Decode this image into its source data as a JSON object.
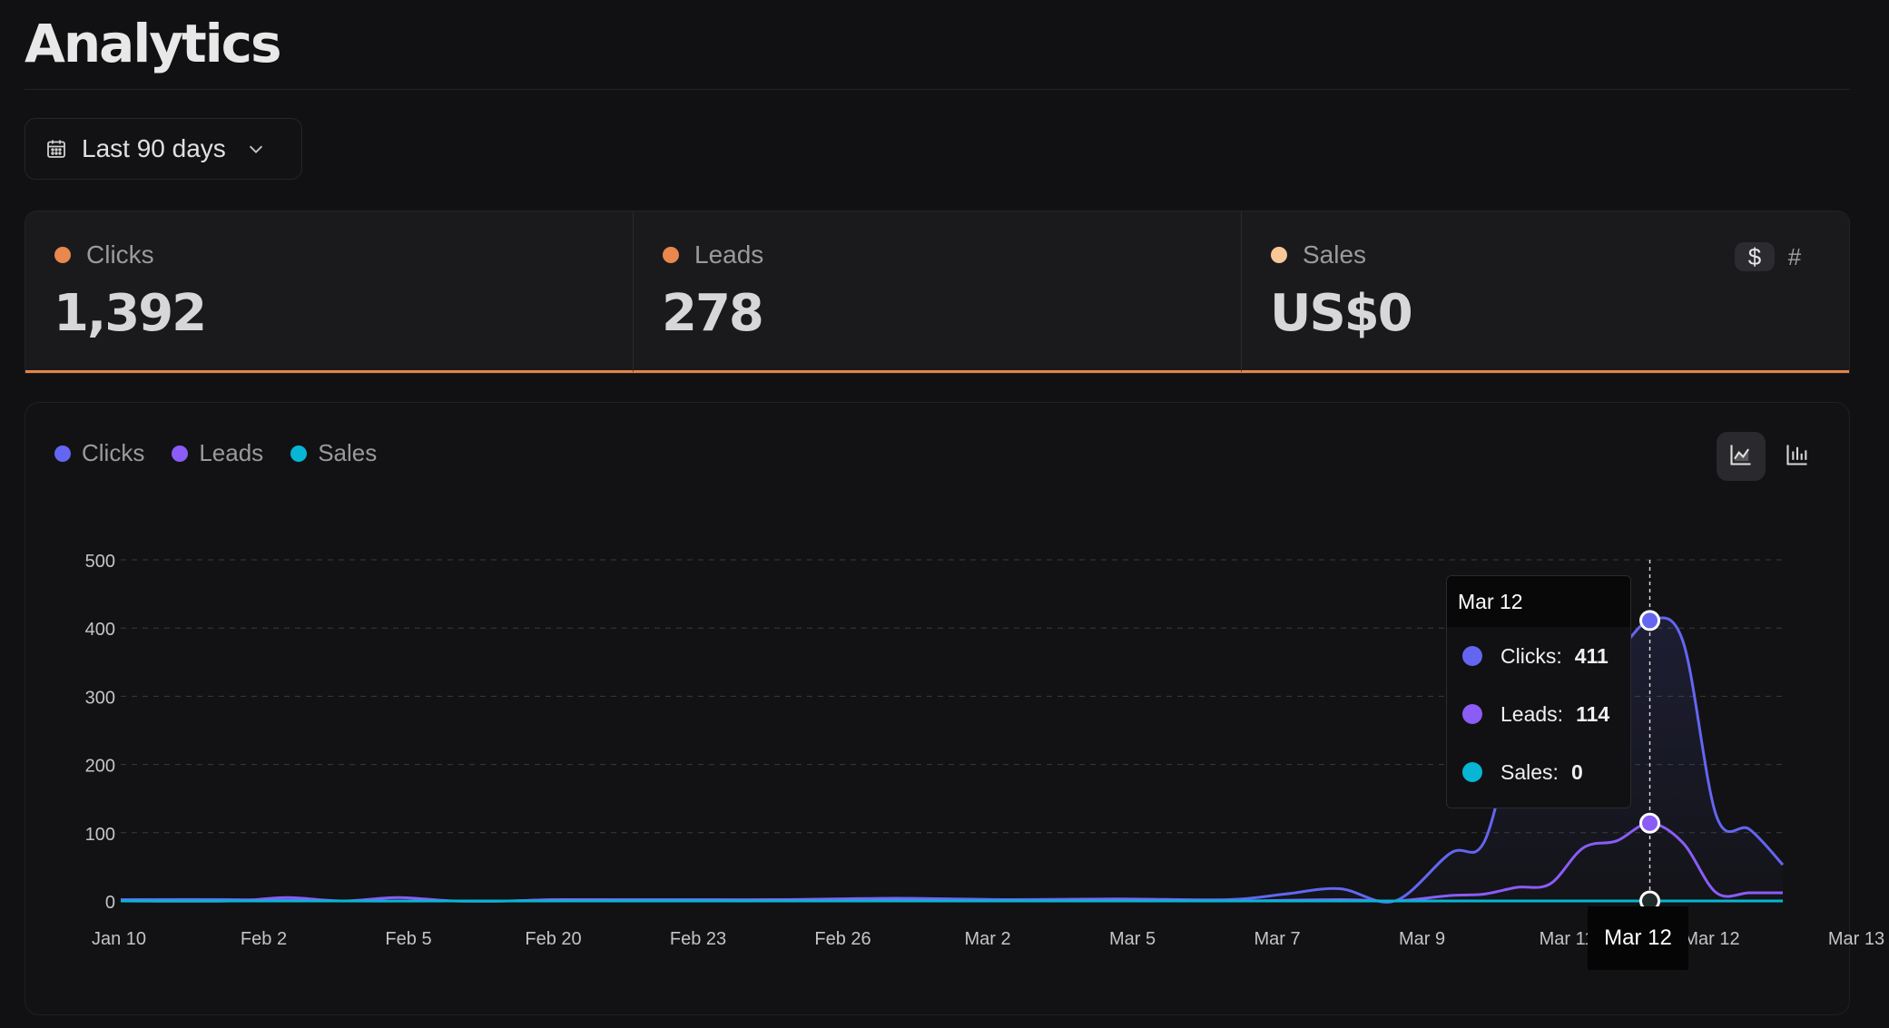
{
  "page": {
    "title": "Analytics"
  },
  "date_range": {
    "label": "Last 90 days",
    "icon": "calendar-icon"
  },
  "stats": [
    {
      "name": "Clicks",
      "value": "1,392",
      "color": "#e8874e"
    },
    {
      "name": "Leads",
      "value": "278",
      "color": "#e8874e"
    },
    {
      "name": "Sales",
      "value": "US$0",
      "color": "#f7c797"
    }
  ],
  "sales_toggle": {
    "currency_label": "$",
    "count_label": "#"
  },
  "legend": [
    {
      "name": "Clicks",
      "color": "#6366f1"
    },
    {
      "name": "Leads",
      "color": "#8b5cf6"
    },
    {
      "name": "Sales",
      "color": "#06b6d4"
    }
  ],
  "view_buttons": [
    "area-chart-icon",
    "bar-chart-icon"
  ],
  "tooltip": {
    "date": "Mar 12",
    "rows": [
      {
        "label": "Clicks:",
        "value": "411",
        "color": "#6366f1"
      },
      {
        "label": "Leads:",
        "value": "114",
        "color": "#8b5cf6"
      },
      {
        "label": "Sales:",
        "value": "0",
        "color": "#06b6d4"
      }
    ]
  },
  "x_tooltip": "Mar 12",
  "chart_data": {
    "type": "area",
    "ylim": [
      0,
      500
    ],
    "yticks": [
      0,
      100,
      200,
      300,
      400,
      500
    ],
    "grid": true,
    "x_tick_labels": [
      "Jan 10",
      "Feb 2",
      "Feb 5",
      "Feb 20",
      "Feb 23",
      "Feb 26",
      "Mar 2",
      "Mar 5",
      "Mar 7",
      "Mar 9",
      "Mar 11",
      "Mar 12",
      "Mar 13"
    ],
    "highlighted": "Mar 12",
    "series": [
      {
        "name": "Clicks",
        "color": "#6366f1",
        "points": [
          [
            0,
            2
          ],
          [
            10,
            2
          ],
          [
            20,
            0
          ],
          [
            30,
            0
          ],
          [
            35,
            0
          ],
          [
            40,
            2
          ],
          [
            50,
            2
          ],
          [
            60,
            2
          ],
          [
            70,
            4
          ],
          [
            80,
            2
          ],
          [
            90,
            3
          ],
          [
            100,
            2
          ],
          [
            105,
            10
          ],
          [
            110,
            18
          ],
          [
            115,
            0
          ],
          [
            120,
            70
          ],
          [
            123,
            85
          ],
          [
            126,
            245
          ],
          [
            129,
            262
          ],
          [
            132,
            350
          ],
          [
            135,
            365
          ],
          [
            138,
            411
          ],
          [
            141,
            380
          ],
          [
            144,
            125
          ],
          [
            147,
            105
          ],
          [
            150,
            53
          ]
        ]
      },
      {
        "name": "Leads",
        "color": "#8b5cf6",
        "points": [
          [
            0,
            0
          ],
          [
            10,
            0
          ],
          [
            15,
            5
          ],
          [
            20,
            0
          ],
          [
            25,
            5
          ],
          [
            30,
            0
          ],
          [
            35,
            0
          ],
          [
            40,
            2
          ],
          [
            50,
            0
          ],
          [
            60,
            2
          ],
          [
            70,
            2
          ],
          [
            80,
            0
          ],
          [
            90,
            2
          ],
          [
            100,
            0
          ],
          [
            110,
            2
          ],
          [
            115,
            0
          ],
          [
            120,
            8
          ],
          [
            123,
            10
          ],
          [
            126,
            20
          ],
          [
            129,
            25
          ],
          [
            132,
            78
          ],
          [
            135,
            88
          ],
          [
            138,
            114
          ],
          [
            141,
            85
          ],
          [
            144,
            12
          ],
          [
            147,
            12
          ],
          [
            150,
            12
          ]
        ]
      },
      {
        "name": "Sales",
        "color": "#06b6d4",
        "points": [
          [
            0,
            0
          ],
          [
            150,
            0
          ]
        ]
      }
    ]
  }
}
